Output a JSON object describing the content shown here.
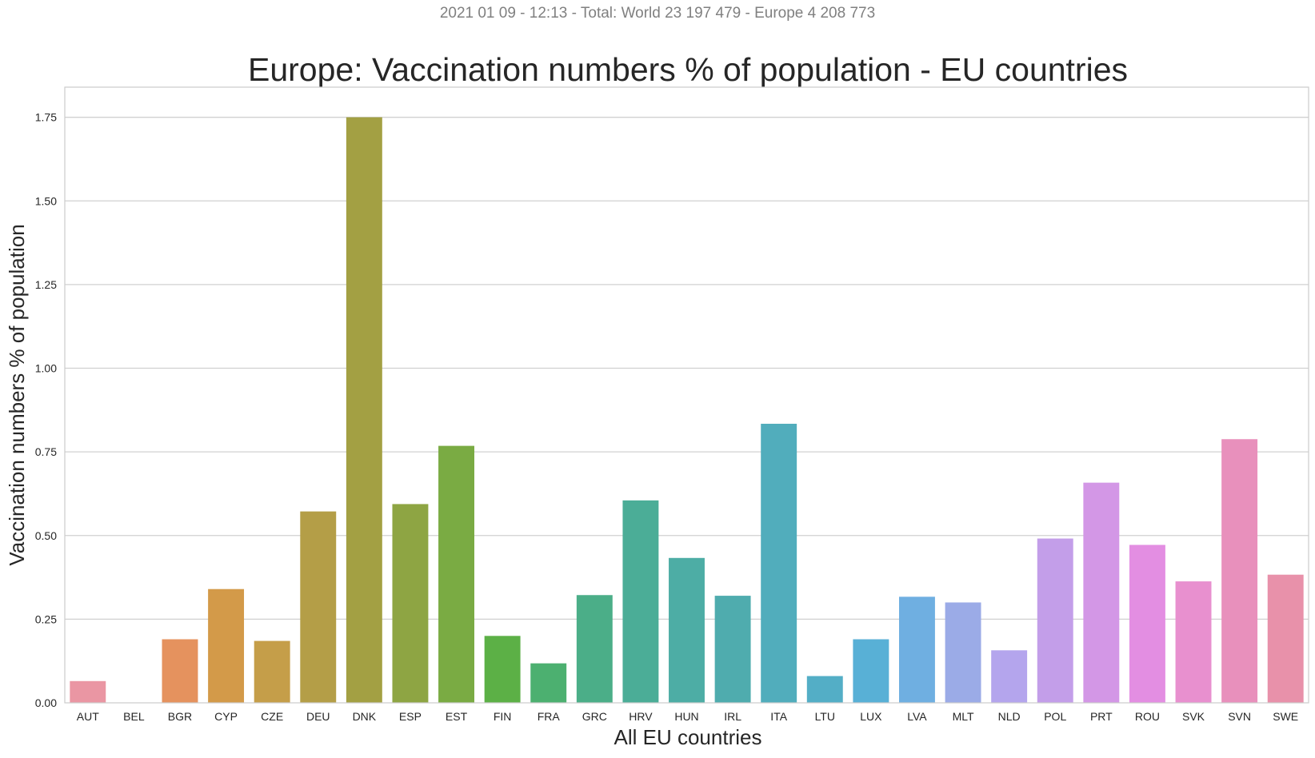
{
  "suptitle": "2021 01 09 - 12:13 - Total: World 23 197 479 - Europe 4 208 773",
  "chart_data": {
    "type": "bar",
    "title": "Europe: Vaccination numbers % of population - EU countries",
    "xlabel": "All EU countries",
    "ylabel": "Vaccination numbers % of population",
    "categories": [
      "AUT",
      "BEL",
      "BGR",
      "CYP",
      "CZE",
      "DEU",
      "DNK",
      "ESP",
      "EST",
      "FIN",
      "FRA",
      "GRC",
      "HRV",
      "HUN",
      "IRL",
      "ITA",
      "LTU",
      "LUX",
      "LVA",
      "MLT",
      "NLD",
      "POL",
      "PRT",
      "ROU",
      "SVK",
      "SVN",
      "SWE"
    ],
    "values": [
      0.065,
      0.0,
      0.19,
      0.34,
      0.185,
      0.572,
      1.75,
      0.594,
      0.768,
      0.2,
      0.118,
      0.322,
      0.605,
      0.433,
      0.32,
      0.834,
      0.08,
      0.19,
      0.317,
      0.3,
      0.157,
      0.491,
      0.658,
      0.472,
      0.363,
      0.788,
      0.383
    ],
    "colors": [
      "#ea96a3",
      "#e8927b",
      "#e5925e",
      "#d39a49",
      "#c59e49",
      "#b49e47",
      "#a3a043",
      "#8ea543",
      "#7aab43",
      "#5cb046",
      "#4cb070",
      "#4bae88",
      "#4bad97",
      "#4dada5",
      "#4facae",
      "#51adbc",
      "#53aec6",
      "#58b0d6",
      "#6fafe1",
      "#9babe7",
      "#b4a5ed",
      "#c39ee9",
      "#d397e6",
      "#e38ee2",
      "#e890cf",
      "#e890bc",
      "#e891aa"
    ],
    "ylim": [
      0,
      1.84
    ],
    "yticks": [
      "0.00",
      "0.25",
      "0.50",
      "0.75",
      "1.00",
      "1.25",
      "1.50",
      "1.75"
    ],
    "grid": true
  }
}
